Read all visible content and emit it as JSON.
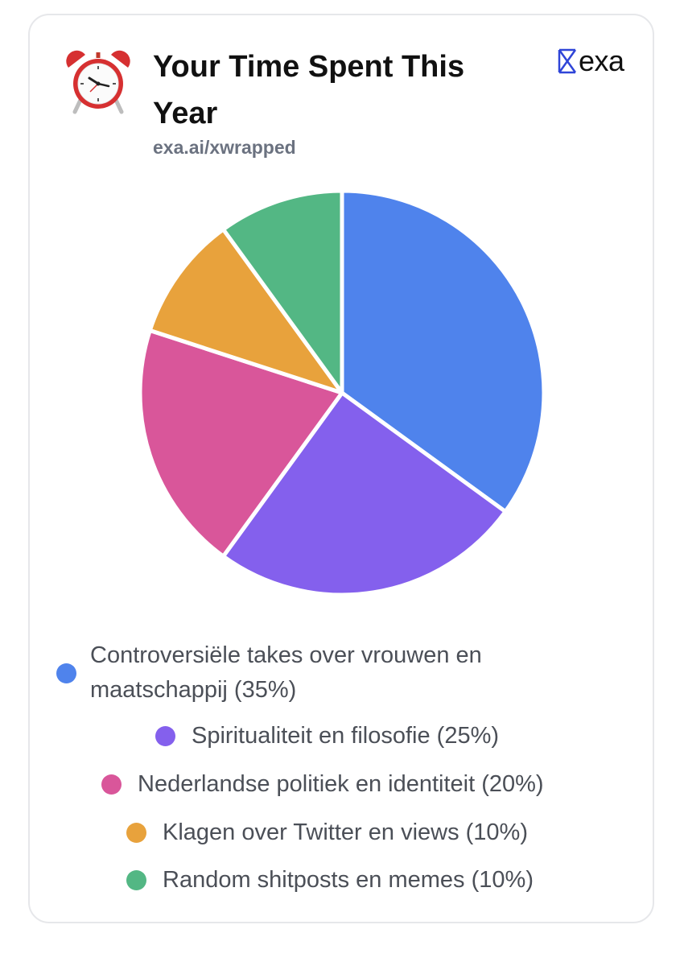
{
  "header": {
    "title": "Your Time Spent This Year",
    "subtitle": "exa.ai/xwrapped",
    "icon": "alarm-clock-icon",
    "brand": {
      "name": "exa",
      "icon": "exa-logo-icon",
      "color": "#2f45d8"
    }
  },
  "chart_data": {
    "type": "pie",
    "categories": [
      "Controversiële takes over vrouwen en maatschappij",
      "Spiritualiteit en filosofie",
      "Nederlandse politiek en identiteit",
      "Klagen over Twitter en views",
      "Random shitposts en memes"
    ],
    "values": [
      35,
      25,
      20,
      10,
      10
    ],
    "colors": [
      "#4f83ec",
      "#8460ed",
      "#d9569a",
      "#e8a23c",
      "#53b784"
    ],
    "legend": [
      "Controversiële takes over vrouwen en maatschappij (35%)",
      "Spiritualiteit en filosofie (25%)",
      "Nederlandse politiek en identiteit (20%)",
      "Klagen over Twitter en views (10%)",
      "Random shitposts en memes (10%)"
    ],
    "legend_position": "bottom"
  }
}
